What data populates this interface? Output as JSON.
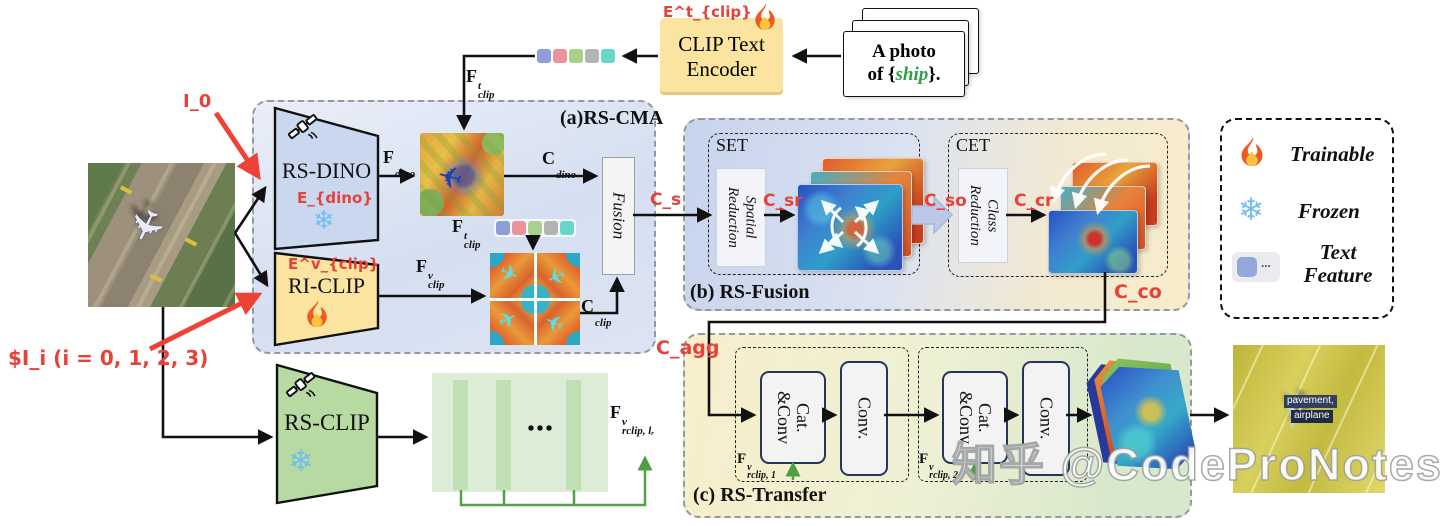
{
  "page": {
    "watermark": "知乎 @CodeProNotes"
  },
  "panels": {
    "a": "(a)RS-CMA",
    "b": "(b) RS-Fusion",
    "c": "(c) RS-Transfer"
  },
  "inputs": {
    "i0": "I_0",
    "ii": "$I_i (i = 0, 1, 2, 3)"
  },
  "prompt": {
    "line1": "A photo",
    "line2_pre": "of {",
    "cls": "ship",
    "line2_post": "}.",
    "cls_color": "#2f9e48"
  },
  "encoders": {
    "clip_text": {
      "name_line1": "CLIP Text",
      "name_line2": "Encoder",
      "param": "E^t_{clip}"
    },
    "rs_dino": {
      "name": "RS-DINO",
      "param": "E_{dino}"
    },
    "ri_clip": {
      "name": "RI-CLIP",
      "param": "E^v_{clip}"
    },
    "rs_clip": {
      "name": "RS-CLIP"
    }
  },
  "cma": {
    "fusion": "Fusion"
  },
  "fusion_mod": {
    "set": "SET",
    "cet": "CET",
    "spatial": "Spatial\nReduction",
    "class": "Class\nReduction",
    "c_s": "C_s",
    "c_sr": "C_sr",
    "c_so": "C_so",
    "c_cr": "C_cr",
    "c_co": "C_co"
  },
  "transfer": {
    "c_agg": "C_agg",
    "catconv": "Cat.\n&Conv",
    "conv": "Conv."
  },
  "features": {
    "f_dino": {
      "base": "F",
      "sup": "",
      "sub": "dino"
    },
    "f_t_clip": {
      "base": "F",
      "sup": "t",
      "sub": "clip"
    },
    "f_v_clip": {
      "base": "F",
      "sup": "v",
      "sub": "clip"
    },
    "c_dino": {
      "base": "C",
      "sup": "",
      "sub": "dino"
    },
    "c_clip": {
      "base": "C",
      "sup": "",
      "sub": "clip"
    },
    "f_rclip_1": {
      "base": "F",
      "sup": "v",
      "sub": "rclip, 1"
    },
    "f_rclip_2": {
      "base": "F",
      "sup": "v",
      "sub": "rclip, 2"
    },
    "f_rclip_lr": {
      "base": "F",
      "sup": "v",
      "sub": "rclip, lᵣ"
    },
    "dots": "•••"
  },
  "legend": {
    "trainable": "Trainable",
    "frozen": "Frozen",
    "text_feature": "Text\nFeature",
    "dots": "..."
  },
  "output": {
    "label1": "pavement,",
    "label2": "airplane"
  },
  "tokens": {
    "colors": [
      "#8d9fd8",
      "#e9939a",
      "#a9d18e",
      "#b3b3b3",
      "#67d7cd"
    ]
  },
  "icons": {
    "snowflake": "❄"
  }
}
